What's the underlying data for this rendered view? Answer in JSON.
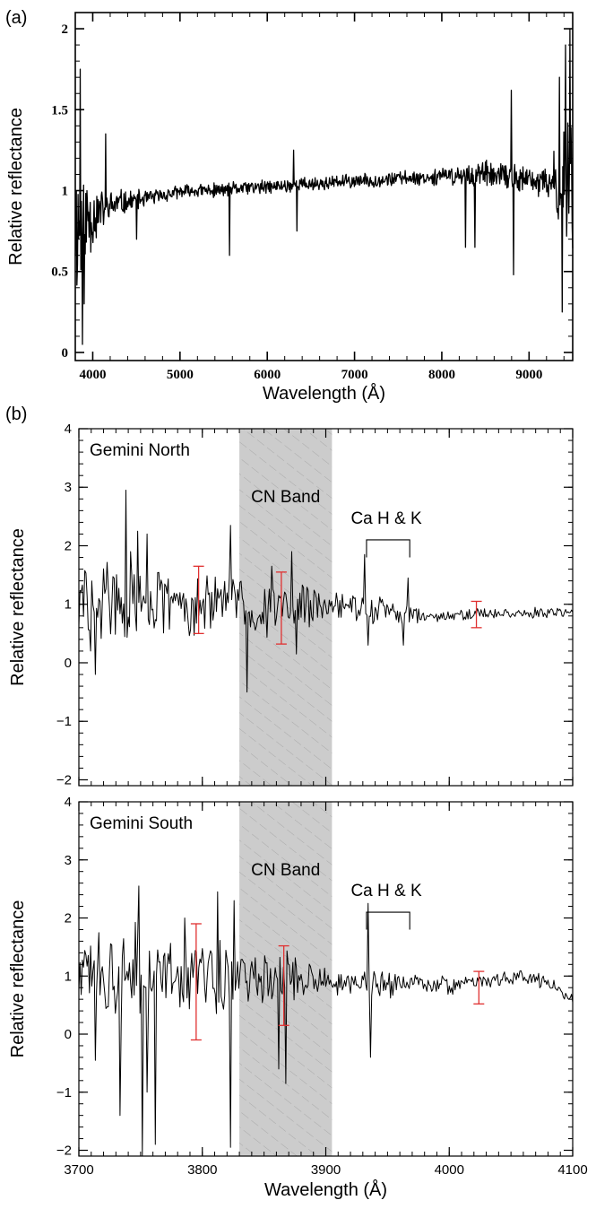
{
  "panels": {
    "a": {
      "letter": "(a)"
    },
    "b": {
      "letter": "(b)"
    }
  },
  "chart_data": [
    {
      "type": "line",
      "panel": "(a)",
      "xlabel": "Wavelength (Å)",
      "ylabel": "Relative reflectance",
      "xlim": [
        3800,
        9500
      ],
      "ylim": [
        -0.05,
        2.1
      ],
      "xticks": [
        4000,
        5000,
        6000,
        7000,
        8000,
        9000
      ],
      "yticks": [
        0,
        0.5,
        1,
        1.5,
        2
      ],
      "yticklabels": [
        "0",
        "0.5",
        "1",
        "1.5",
        "2"
      ],
      "x": [
        3800,
        3900,
        4000,
        4100,
        4200,
        4300,
        4400,
        4500,
        4600,
        4800,
        5000,
        5200,
        5400,
        5600,
        5800,
        6000,
        6200,
        6400,
        6600,
        6800,
        7000,
        7200,
        7400,
        7600,
        7800,
        8000,
        8200,
        8400,
        8600,
        8800,
        9000,
        9200,
        9300,
        9400,
        9500
      ],
      "y": [
        0.78,
        0.82,
        0.85,
        0.88,
        0.9,
        0.92,
        0.93,
        0.94,
        0.95,
        0.97,
        0.99,
        1.0,
        1.0,
        1.01,
        1.02,
        1.02,
        1.03,
        1.04,
        1.04,
        1.05,
        1.06,
        1.06,
        1.07,
        1.08,
        1.08,
        1.09,
        1.09,
        1.1,
        1.09,
        1.08,
        1.06,
        1.04,
        1.03,
        1.05,
        1.15
      ],
      "noise": [
        0.55,
        0.4,
        0.25,
        0.15,
        0.12,
        0.1,
        0.08,
        0.07,
        0.06,
        0.05,
        0.05,
        0.05,
        0.05,
        0.05,
        0.05,
        0.05,
        0.05,
        0.05,
        0.05,
        0.05,
        0.05,
        0.05,
        0.05,
        0.05,
        0.05,
        0.06,
        0.07,
        0.1,
        0.09,
        0.1,
        0.1,
        0.12,
        0.25,
        0.4,
        0.6
      ],
      "spikes": [
        {
          "x": 3860,
          "y": 1.75
        },
        {
          "x": 3880,
          "y": 0.05
        },
        {
          "x": 3900,
          "y": 0.3
        },
        {
          "x": 4150,
          "y": 1.35
        },
        {
          "x": 4500,
          "y": 0.7
        },
        {
          "x": 5570,
          "y": 0.6
        },
        {
          "x": 6300,
          "y": 1.25
        },
        {
          "x": 6340,
          "y": 0.75
        },
        {
          "x": 8270,
          "y": 0.65
        },
        {
          "x": 8380,
          "y": 0.65
        },
        {
          "x": 8800,
          "y": 1.62
        },
        {
          "x": 8820,
          "y": 0.48
        },
        {
          "x": 9350,
          "y": 1.7
        },
        {
          "x": 9380,
          "y": 0.25
        },
        {
          "x": 9420,
          "y": 1.9
        },
        {
          "x": 9470,
          "y": 2.0
        }
      ]
    },
    {
      "type": "line",
      "panel": "(b)",
      "annotation": "Gemini North",
      "xlabel": "",
      "ylabel": "Relative reflectance",
      "xlim": [
        3700,
        4100
      ],
      "ylim": [
        -2.1,
        4.0
      ],
      "xticks": [
        3700,
        3800,
        3900,
        4000,
        4100
      ],
      "yticks": [
        -2,
        -1,
        0,
        1,
        2,
        3,
        4
      ],
      "yticklabels": [
        "−2",
        "−1",
        "0",
        "1",
        "2",
        "3",
        "4"
      ],
      "band": {
        "label": "CN Band",
        "x0": 3830,
        "x1": 3905
      },
      "bracket": {
        "label": "Ca H & K",
        "x0": 3933,
        "x1": 3968,
        "y": 2.1,
        "tick_to": 1.8
      },
      "error_bars": [
        {
          "x": 3797,
          "low": 0.5,
          "high": 1.65
        },
        {
          "x": 3864,
          "low": 0.32,
          "high": 1.55
        },
        {
          "x": 4022,
          "low": 0.6,
          "high": 1.05
        }
      ],
      "x": [
        3700,
        3720,
        3740,
        3760,
        3780,
        3800,
        3820,
        3840,
        3860,
        3880,
        3900,
        3920,
        3940,
        3960,
        3980,
        4000,
        4020,
        4040,
        4060,
        4080,
        4100
      ],
      "y": [
        1.0,
        1.1,
        1.05,
        1.0,
        1.0,
        1.0,
        1.05,
        0.95,
        0.95,
        0.95,
        0.95,
        0.95,
        0.9,
        0.85,
        0.8,
        0.8,
        0.82,
        0.85,
        0.85,
        0.82,
        0.9
      ],
      "noise": [
        0.75,
        0.8,
        0.85,
        0.75,
        0.6,
        0.55,
        0.5,
        0.6,
        0.55,
        0.5,
        0.3,
        0.3,
        0.3,
        0.25,
        0.15,
        0.12,
        0.12,
        0.12,
        0.12,
        0.12,
        0.12
      ],
      "spikes": [
        {
          "x": 3738,
          "y": 2.95
        },
        {
          "x": 3742,
          "y": 1.9
        },
        {
          "x": 3748,
          "y": 2.25
        },
        {
          "x": 3755,
          "y": 2.2
        },
        {
          "x": 3710,
          "y": 0.2
        },
        {
          "x": 3713,
          "y": -0.2
        },
        {
          "x": 3823,
          "y": 2.35
        },
        {
          "x": 3836,
          "y": -0.5
        },
        {
          "x": 3856,
          "y": 1.65
        },
        {
          "x": 3872,
          "y": 1.9
        },
        {
          "x": 3876,
          "y": 0.15
        },
        {
          "x": 3931,
          "y": 1.85
        },
        {
          "x": 3934,
          "y": 0.3
        },
        {
          "x": 3967,
          "y": 1.45
        },
        {
          "x": 3963,
          "y": 0.3
        }
      ]
    },
    {
      "type": "line",
      "panel": "(b)",
      "annotation": "Gemini South",
      "xlabel": "Wavelength (Å)",
      "ylabel": "Relative reflectance",
      "xlim": [
        3700,
        4100
      ],
      "ylim": [
        -2.1,
        4.0
      ],
      "xticks": [
        3700,
        3800,
        3900,
        4000,
        4100
      ],
      "xticklabels": [
        "3700",
        "3800",
        "3900",
        "4000",
        "4100"
      ],
      "yticks": [
        -2,
        -1,
        0,
        1,
        2,
        3,
        4
      ],
      "yticklabels": [
        "−2",
        "−1",
        "0",
        "1",
        "2",
        "3",
        "4"
      ],
      "band": {
        "label": "CN Band",
        "x0": 3830,
        "x1": 3905
      },
      "bracket": {
        "label": "Ca H & K",
        "x0": 3933,
        "x1": 3968,
        "y": 2.1,
        "tick_to": 1.8
      },
      "error_bars": [
        {
          "x": 3795,
          "low": -0.1,
          "high": 1.9
        },
        {
          "x": 3866,
          "low": 0.15,
          "high": 1.52
        },
        {
          "x": 4024,
          "low": 0.52,
          "high": 1.08
        }
      ],
      "x": [
        3700,
        3720,
        3740,
        3760,
        3780,
        3800,
        3820,
        3840,
        3860,
        3880,
        3900,
        3920,
        3940,
        3960,
        3980,
        4000,
        4020,
        4040,
        4060,
        4080,
        4100
      ],
      "y": [
        1.0,
        1.0,
        0.95,
        0.95,
        1.0,
        0.95,
        1.0,
        0.9,
        0.95,
        0.95,
        0.95,
        0.85,
        0.85,
        0.9,
        0.85,
        0.85,
        0.9,
        0.95,
        1.0,
        0.9,
        0.6
      ],
      "noise": [
        0.55,
        0.8,
        1.0,
        0.95,
        0.7,
        0.6,
        0.75,
        0.6,
        0.55,
        0.5,
        0.3,
        0.25,
        0.3,
        0.25,
        0.2,
        0.2,
        0.15,
        0.15,
        0.15,
        0.15,
        0.1
      ],
      "spikes": [
        {
          "x": 3713,
          "y": -0.45
        },
        {
          "x": 3733,
          "y": -1.4
        },
        {
          "x": 3749,
          "y": 2.55
        },
        {
          "x": 3751,
          "y": -2.1
        },
        {
          "x": 3755,
          "y": -1.0
        },
        {
          "x": 3762,
          "y": -1.9
        },
        {
          "x": 3786,
          "y": 2.0
        },
        {
          "x": 3812,
          "y": 2.45
        },
        {
          "x": 3823,
          "y": -1.95
        },
        {
          "x": 3826,
          "y": 2.3
        },
        {
          "x": 3862,
          "y": -0.6
        },
        {
          "x": 3868,
          "y": -0.85
        },
        {
          "x": 3934,
          "y": 2.25
        },
        {
          "x": 3936,
          "y": -0.4
        }
      ]
    }
  ]
}
